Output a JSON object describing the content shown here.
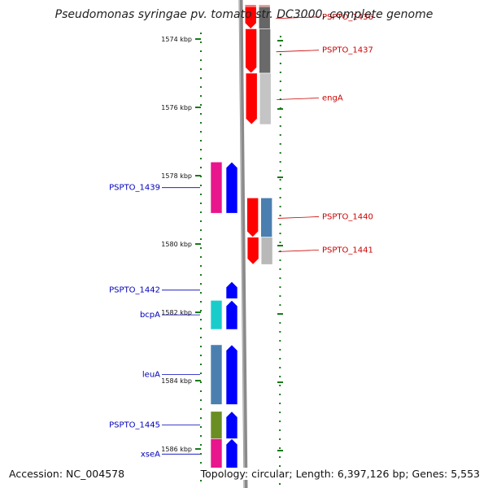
{
  "title": "Pseudomonas syringae pv. tomato str. DC3000, complete genome",
  "footer": {
    "accession": "Accession: NC_004578",
    "summary": "Topology: circular; Length: 6,397,126 bp; Genes: 5,553"
  },
  "colors": {
    "forward_label": "#cc0000",
    "reverse_label": "#0000bb",
    "tick": "#1a7a1a",
    "backbone": "#8a8a8a"
  },
  "axis": {
    "kbp_start": 1573,
    "kbp_end": 1586.6,
    "ticks": [
      {
        "kbp": 1574,
        "label": "1574 kbp"
      },
      {
        "kbp": 1576,
        "label": "1576 kbp"
      },
      {
        "kbp": 1578,
        "label": "1578 kbp"
      },
      {
        "kbp": 1580,
        "label": "1580 kbp"
      },
      {
        "kbp": 1582,
        "label": "1582 kbp"
      },
      {
        "kbp": 1584,
        "label": "1584 kbp"
      },
      {
        "kbp": 1586,
        "label": "1586 kbp"
      }
    ]
  },
  "forward_genes": [
    {
      "start": 1573.0,
      "end": 1573.1,
      "color": "#ff4444",
      "cds_color": "#ee7777",
      "name": ""
    },
    {
      "start": 1573.05,
      "end": 1573.7,
      "color": "#ff0000",
      "cds_color": "#666666",
      "name": "PSPTO_1436"
    },
    {
      "start": 1573.7,
      "end": 1575.0,
      "color": "#ff0000",
      "cds_color": "#6a6a6a",
      "name": "PSPTO_1437"
    },
    {
      "start": 1575.0,
      "end": 1576.5,
      "color": "#ff0000",
      "cds_color": "#c4c4c4",
      "name": "engA"
    },
    {
      "start": 1578.65,
      "end": 1579.8,
      "color": "#ff0000",
      "cds_color": "#4a7fb0",
      "name": "PSPTO_1440"
    },
    {
      "start": 1579.8,
      "end": 1580.6,
      "color": "#ff0000",
      "cds_color": "#b8b8b8",
      "name": "PSPTO_1441"
    }
  ],
  "reverse_genes": [
    {
      "start": 1577.6,
      "end": 1579.1,
      "color": "#0000ff",
      "cds_color": "#e8158c",
      "name": "PSPTO_1439"
    },
    {
      "start": 1581.1,
      "end": 1581.6,
      "color": "#0000ff",
      "cds_color": "",
      "name": "PSPTO_1442"
    },
    {
      "start": 1581.65,
      "end": 1582.5,
      "color": "#0000ff",
      "cds_color": "#19cccc",
      "name": "bcpA"
    },
    {
      "start": 1582.95,
      "end": 1584.7,
      "color": "#0000ff",
      "cds_color": "#4a7fb0",
      "name": "leuA"
    },
    {
      "start": 1584.9,
      "end": 1585.7,
      "color": "#0000ff",
      "cds_color": "#6b8e23",
      "name": "PSPTO_1445"
    },
    {
      "start": 1585.7,
      "end": 1586.6,
      "color": "#0000ff",
      "cds_color": "#e8158c",
      "name": "xseA"
    }
  ]
}
